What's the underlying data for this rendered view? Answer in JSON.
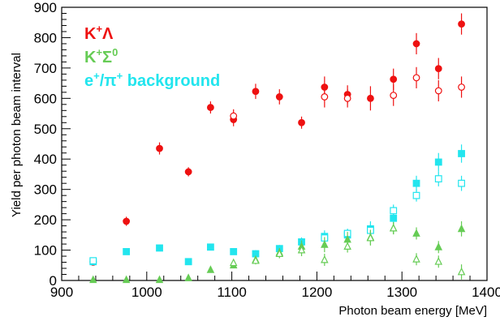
{
  "chart_data": {
    "type": "scatter",
    "xlabel": "Photon beam energy [MeV]",
    "ylabel": "Yield per photon beam interval",
    "xlim": [
      900,
      1400
    ],
    "ylim": [
      0,
      900
    ],
    "x_ticks": [
      "900",
      "1000",
      "1100",
      "1200",
      "1300",
      "1400"
    ],
    "y_ticks": [
      "0",
      "100",
      "200",
      "300",
      "400",
      "500",
      "600",
      "700",
      "800",
      "900"
    ],
    "legend": [
      {
        "label_main": "K",
        "label_sup": "+",
        "label_tail": "Λ",
        "label_sup2": "",
        "label_rest": "",
        "color": "#ee1111"
      },
      {
        "label_main": "K",
        "label_sup": "+",
        "label_tail": "Σ",
        "label_sup2": "0",
        "label_rest": "",
        "color": "#66cc55"
      },
      {
        "label_main": "e",
        "label_sup": "+",
        "label_tail": "/π",
        "label_sup2": "+",
        "label_rest": " background",
        "color": "#22e5ee"
      }
    ],
    "legend_position": "top-left",
    "x": [
      937,
      976,
      1015,
      1049,
      1075,
      1102,
      1128,
      1156,
      1182,
      1209,
      1236,
      1263,
      1290,
      1317,
      1343,
      1370
    ],
    "series": [
      {
        "marker": "circle-filled",
        "color": "#ee1111",
        "values": [
          60,
          195,
          435,
          358,
          570,
          530,
          623,
          605,
          520,
          637,
          613,
          600,
          663,
          780,
          698,
          845
        ],
        "errors": [
          8,
          15,
          20,
          15,
          20,
          22,
          25,
          25,
          20,
          35,
          30,
          40,
          35,
          35,
          35,
          35
        ]
      },
      {
        "marker": "circle-open",
        "color": "#ee1111",
        "values": [
          63,
          null,
          null,
          null,
          null,
          542,
          null,
          null,
          null,
          605,
          600,
          null,
          610,
          668,
          625,
          637
        ],
        "errors": [
          8,
          0,
          0,
          0,
          0,
          22,
          0,
          0,
          0,
          35,
          30,
          0,
          35,
          35,
          35,
          35
        ]
      },
      {
        "marker": "square-filled",
        "color": "#22e5ee",
        "values": [
          62,
          95,
          107,
          62,
          110,
          95,
          88,
          105,
          127,
          145,
          150,
          170,
          205,
          320,
          390,
          418
        ],
        "errors": [
          5,
          8,
          8,
          8,
          10,
          10,
          12,
          12,
          15,
          20,
          20,
          25,
          25,
          25,
          30,
          30
        ]
      },
      {
        "marker": "square-open",
        "color": "#22e5ee",
        "values": [
          65,
          null,
          null,
          null,
          null,
          null,
          null,
          null,
          null,
          140,
          155,
          165,
          230,
          280,
          335,
          320
        ],
        "errors": [
          5,
          0,
          0,
          0,
          0,
          0,
          0,
          0,
          0,
          15,
          15,
          20,
          20,
          20,
          25,
          25
        ]
      },
      {
        "marker": "triangle-filled",
        "color": "#66cc55",
        "values": [
          2,
          2,
          2,
          8,
          35,
          50,
          68,
          92,
          112,
          118,
          135,
          142,
          172,
          155,
          110,
          170
        ],
        "errors": [
          2,
          2,
          2,
          5,
          8,
          10,
          12,
          15,
          20,
          25,
          25,
          25,
          20,
          20,
          20,
          25
        ]
      },
      {
        "marker": "triangle-open",
        "color": "#66cc55",
        "values": [
          null,
          null,
          null,
          null,
          null,
          58,
          65,
          88,
          100,
          68,
          112,
          140,
          172,
          70,
          62,
          28
        ],
        "errors": [
          0,
          0,
          0,
          0,
          0,
          10,
          12,
          15,
          20,
          20,
          20,
          25,
          20,
          20,
          20,
          25
        ]
      }
    ]
  }
}
